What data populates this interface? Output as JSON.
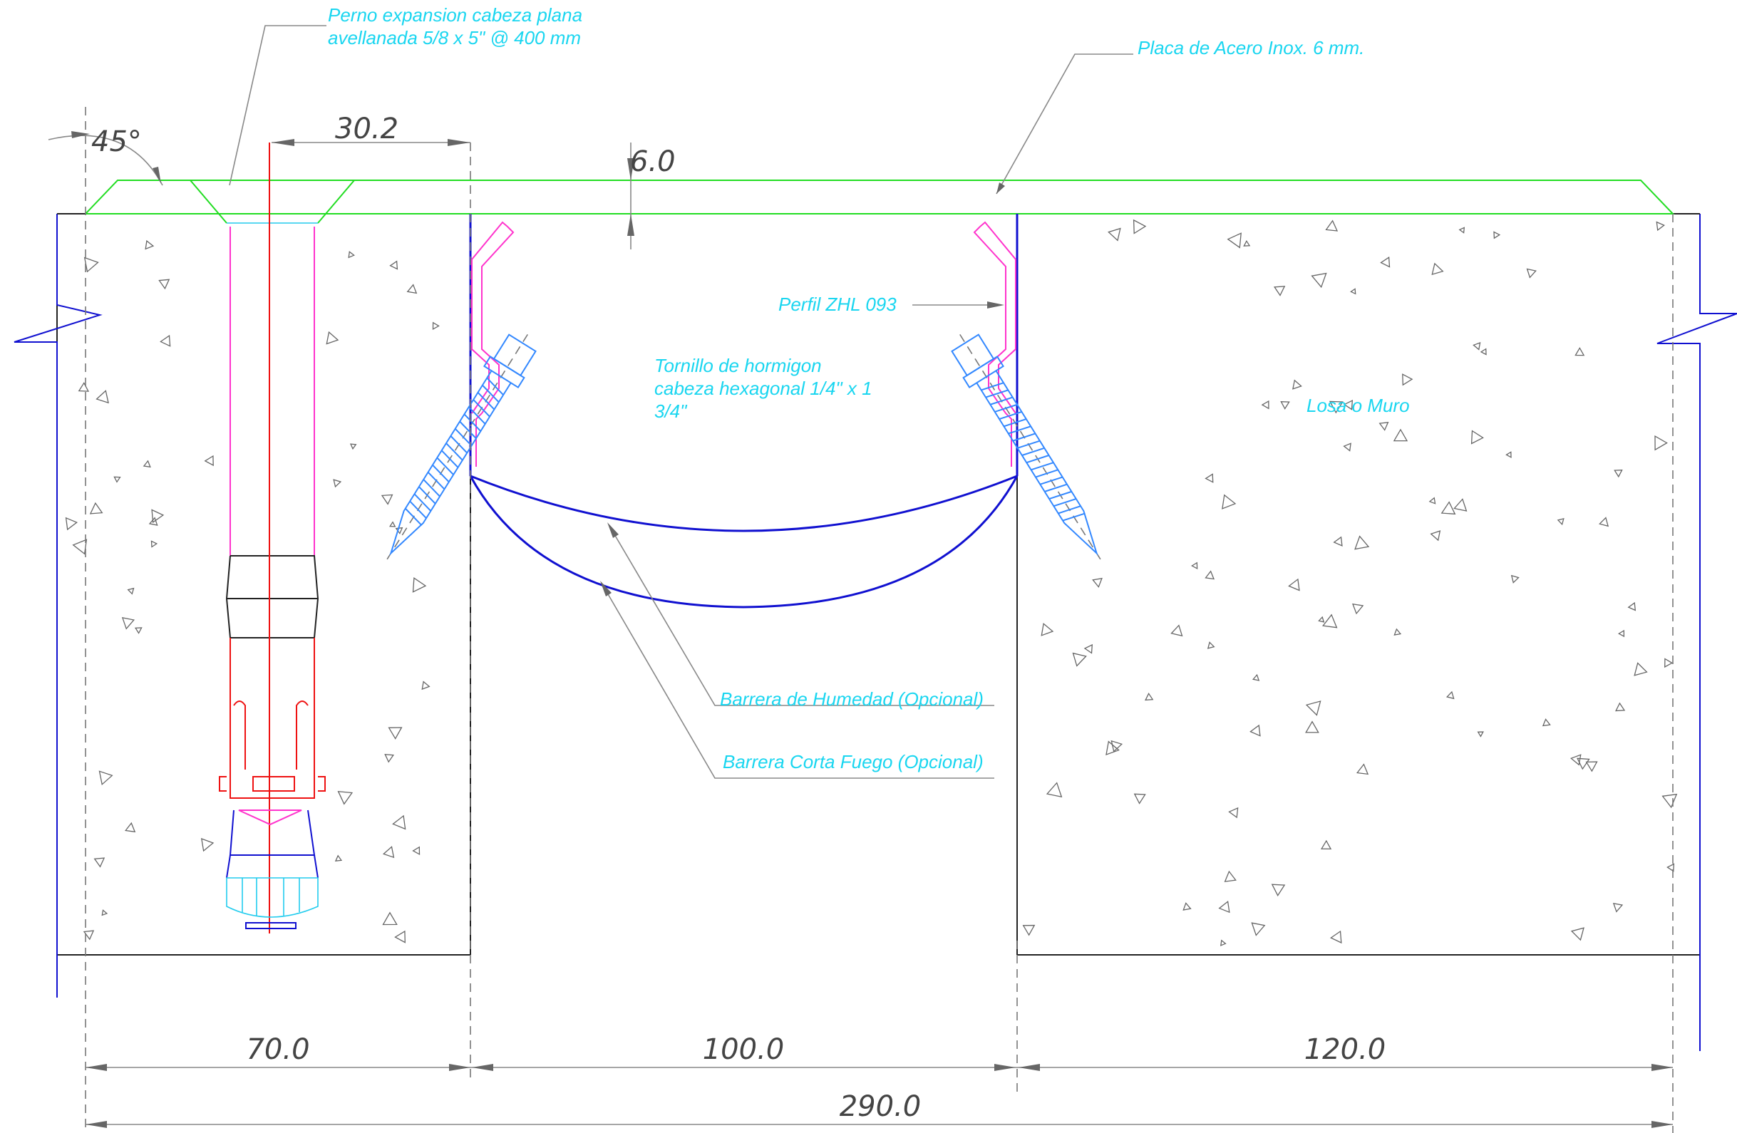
{
  "labels": {
    "bolt_line1": "Perno expansion cabeza plana",
    "bolt_line2": "avellanada 5/8  x 5\" @ 400 mm",
    "plate": "Placa de Acero Inox. 6 mm.",
    "profile": "Perfil ZHL 093",
    "screw_line1": "Tornillo de hormigon",
    "screw_line2": "cabeza hexagonal 1/4\" x 1",
    "screw_line3": "3/4\"",
    "slab": "Losa o Muro",
    "moisture": "Barrera de Humedad (Opcional)",
    "fire": "Barrera Corta Fuego (Opcional)"
  },
  "dimensions": {
    "angle": "45°",
    "bolt_offset": "30.2",
    "plate_thickness": "6.0",
    "left": "70.0",
    "gap": "100.0",
    "right": "120.0",
    "total": "290.0"
  },
  "colors": {
    "label": "#1ad6f0",
    "plate": "#22dd22",
    "profile": "#1010d0",
    "anchor": "#ee1111",
    "screw": "#3388ff",
    "accent": "#ff33cc"
  }
}
